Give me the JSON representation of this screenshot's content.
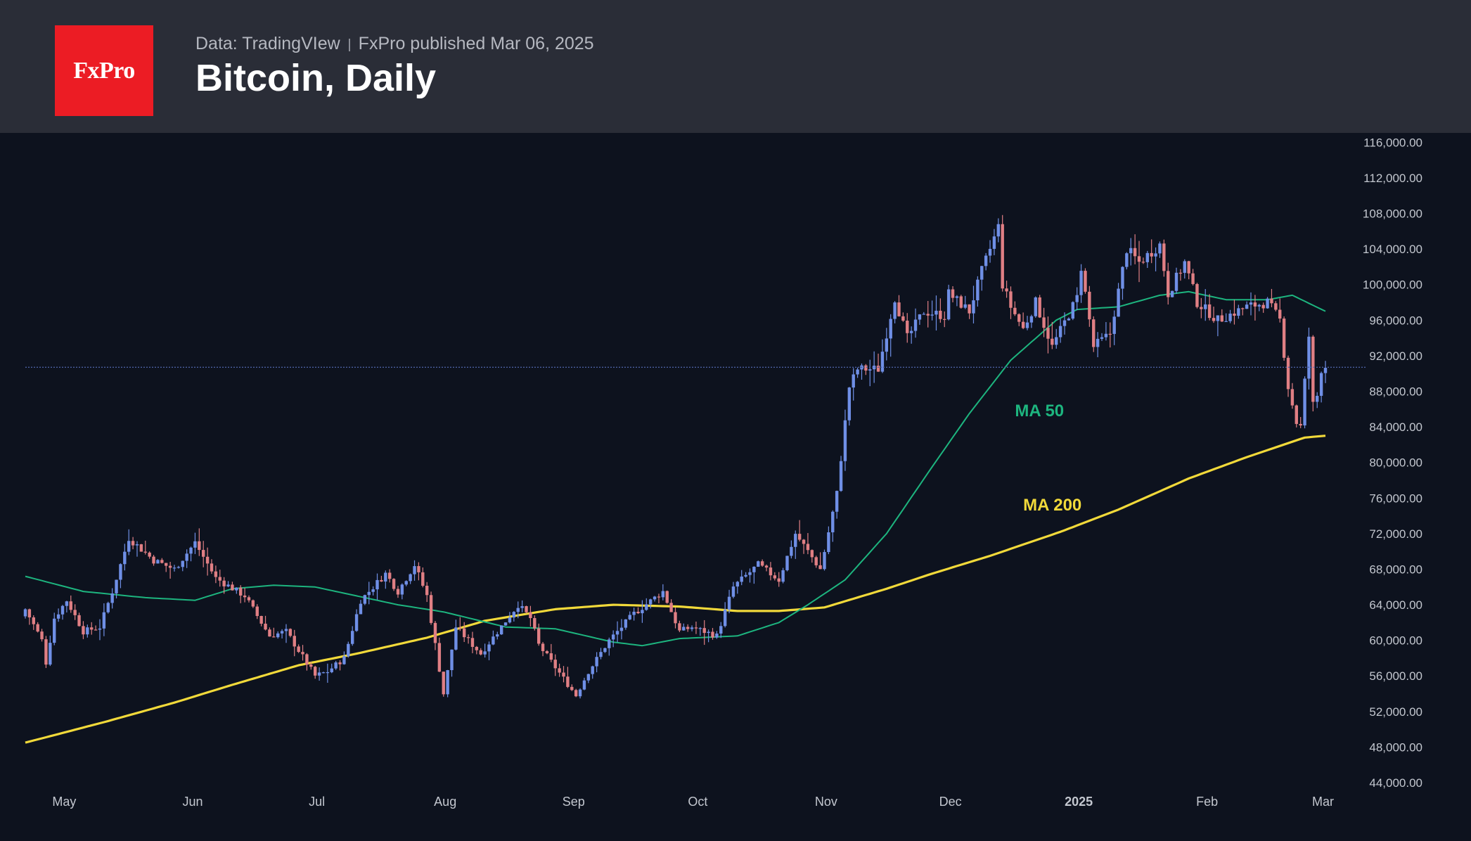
{
  "header": {
    "logo_text": "FxPro",
    "source": "Data: TradingVIew",
    "published": "FxPro published Mar 06, 2025",
    "title": "Bitcoin, Daily"
  },
  "colors": {
    "background": "#0d121e",
    "header": "#2a2d37",
    "logo": "#ec1c24",
    "candle_up": "#6f8fe6",
    "candle_down": "#e07f84",
    "ma50": "#1db57f",
    "ma200": "#f1d93a",
    "axis_text": "#c3c7cf",
    "current_price_line": "#4a5ea0"
  },
  "chart_data": {
    "type": "candlestick",
    "title": "Bitcoin, Daily",
    "x_tick_labels": [
      "May",
      "Jun",
      "Jul",
      "Aug",
      "Sep",
      "Oct",
      "Nov",
      "Dec",
      "2025",
      "Feb",
      "Mar"
    ],
    "x_tick_dates": [
      "2024-05-01",
      "2024-06-01",
      "2024-07-01",
      "2024-08-01",
      "2024-09-01",
      "2024-10-01",
      "2024-11-01",
      "2024-12-01",
      "2025-01-01",
      "2025-02-01",
      "2025-03-01"
    ],
    "y_tick_labels": [
      "116,000.00",
      "112,000.00",
      "108,000.00",
      "104,000.00",
      "100,000.00",
      "96,000.00",
      "92,000.00",
      "88,000.00",
      "84,000.00",
      "80,000.00",
      "76,000.00",
      "72,000.00",
      "68,000.00",
      "64,000.00",
      "60,000.00",
      "56,000.00",
      "52,000.00",
      "48,000.00",
      "44,000.00"
    ],
    "ylim": [
      42500,
      116500
    ],
    "x_range": [
      "2024-04-26",
      "2025-03-06"
    ],
    "current_price": 90700,
    "price_anchors": [
      [
        "2024-04-26",
        63500
      ],
      [
        "2024-04-30",
        60000
      ],
      [
        "2024-05-01",
        57500
      ],
      [
        "2024-05-03",
        62500
      ],
      [
        "2024-05-06",
        64500
      ],
      [
        "2024-05-10",
        61000
      ],
      [
        "2024-05-14",
        61500
      ],
      [
        "2024-05-17",
        65500
      ],
      [
        "2024-05-20",
        70000
      ],
      [
        "2024-05-21",
        71500
      ],
      [
        "2024-05-27",
        69000
      ],
      [
        "2024-06-01",
        68000
      ],
      [
        "2024-06-06",
        71000
      ],
      [
        "2024-06-11",
        67000
      ],
      [
        "2024-06-18",
        65000
      ],
      [
        "2024-06-24",
        60500
      ],
      [
        "2024-06-28",
        61000
      ],
      [
        "2024-07-05",
        56000
      ],
      [
        "2024-07-08",
        56500
      ],
      [
        "2024-07-12",
        58000
      ],
      [
        "2024-07-16",
        64500
      ],
      [
        "2024-07-22",
        67500
      ],
      [
        "2024-07-25",
        65500
      ],
      [
        "2024-07-29",
        68500
      ],
      [
        "2024-08-01",
        65000
      ],
      [
        "2024-08-05",
        54000
      ],
      [
        "2024-08-08",
        61500
      ],
      [
        "2024-08-14",
        58500
      ],
      [
        "2024-08-23",
        64000
      ],
      [
        "2024-08-26",
        62500
      ],
      [
        "2024-08-28",
        59500
      ],
      [
        "2024-09-06",
        53800
      ],
      [
        "2024-09-09",
        56500
      ],
      [
        "2024-09-14",
        60000
      ],
      [
        "2024-09-20",
        63000
      ],
      [
        "2024-09-27",
        65500
      ],
      [
        "2024-10-01",
        61000
      ],
      [
        "2024-10-04",
        61500
      ],
      [
        "2024-10-10",
        60500
      ],
      [
        "2024-10-14",
        66000
      ],
      [
        "2024-10-20",
        68500
      ],
      [
        "2024-10-25",
        66800
      ],
      [
        "2024-10-29",
        72000
      ],
      [
        "2024-11-04",
        68000
      ],
      [
        "2024-11-05",
        70000
      ],
      [
        "2024-11-08",
        76500
      ],
      [
        "2024-11-11",
        88500
      ],
      [
        "2024-11-13",
        90500
      ],
      [
        "2024-11-18",
        90500
      ],
      [
        "2024-11-22",
        98500
      ],
      [
        "2024-11-25",
        94000
      ],
      [
        "2024-11-29",
        97000
      ],
      [
        "2024-12-04",
        96500
      ],
      [
        "2024-12-05",
        99000
      ],
      [
        "2024-12-10",
        97000
      ],
      [
        "2024-12-13",
        101500
      ],
      [
        "2024-12-17",
        106500
      ],
      [
        "2024-12-18",
        100000
      ],
      [
        "2024-12-20",
        97500
      ],
      [
        "2024-12-23",
        95000
      ],
      [
        "2024-12-26",
        98000
      ],
      [
        "2024-12-30",
        93000
      ],
      [
        "2025-01-05",
        98500
      ],
      [
        "2025-01-06",
        102000
      ],
      [
        "2025-01-09",
        93000
      ],
      [
        "2025-01-13",
        94500
      ],
      [
        "2025-01-17",
        104000
      ],
      [
        "2025-01-20",
        102500
      ],
      [
        "2025-01-25",
        104500
      ],
      [
        "2025-01-27",
        99000
      ],
      [
        "2025-01-31",
        102500
      ],
      [
        "2025-02-03",
        98000
      ],
      [
        "2025-02-08",
        96000
      ],
      [
        "2025-02-15",
        97500
      ],
      [
        "2025-02-20",
        98000
      ],
      [
        "2025-02-23",
        96000
      ],
      [
        "2025-02-25",
        88500
      ],
      [
        "2025-02-27",
        84500
      ],
      [
        "2025-02-28",
        84000
      ],
      [
        "2025-03-02",
        94200
      ],
      [
        "2025-03-03",
        86500
      ],
      [
        "2025-03-04",
        87500
      ],
      [
        "2025-03-05",
        90500
      ],
      [
        "2025-03-06",
        90800
      ]
    ],
    "ma50": [
      [
        "2024-04-26",
        67200
      ],
      [
        "2024-05-10",
        65500
      ],
      [
        "2024-05-25",
        64800
      ],
      [
        "2024-06-06",
        64500
      ],
      [
        "2024-06-15",
        65800
      ],
      [
        "2024-06-25",
        66200
      ],
      [
        "2024-07-05",
        66000
      ],
      [
        "2024-07-15",
        65000
      ],
      [
        "2024-07-25",
        64000
      ],
      [
        "2024-08-05",
        63200
      ],
      [
        "2024-08-20",
        61500
      ],
      [
        "2024-09-01",
        61300
      ],
      [
        "2024-09-15",
        59800
      ],
      [
        "2024-09-22",
        59400
      ],
      [
        "2024-10-01",
        60200
      ],
      [
        "2024-10-15",
        60500
      ],
      [
        "2024-10-25",
        62000
      ],
      [
        "2024-11-01",
        64000
      ],
      [
        "2024-11-10",
        66800
      ],
      [
        "2024-11-20",
        72000
      ],
      [
        "2024-12-01",
        79500
      ],
      [
        "2024-12-10",
        85500
      ],
      [
        "2024-12-20",
        91500
      ],
      [
        "2024-12-31",
        96000
      ],
      [
        "2025-01-05",
        97200
      ],
      [
        "2025-01-15",
        97500
      ],
      [
        "2025-01-25",
        98800
      ],
      [
        "2025-02-01",
        99200
      ],
      [
        "2025-02-10",
        98300
      ],
      [
        "2025-02-20",
        98300
      ],
      [
        "2025-02-26",
        98800
      ],
      [
        "2025-03-06",
        97000
      ]
    ],
    "ma200": [
      [
        "2024-04-26",
        48500
      ],
      [
        "2024-05-15",
        50800
      ],
      [
        "2024-06-01",
        53000
      ],
      [
        "2024-06-15",
        55000
      ],
      [
        "2024-07-01",
        57200
      ],
      [
        "2024-07-15",
        58500
      ],
      [
        "2024-08-01",
        60300
      ],
      [
        "2024-08-15",
        62200
      ],
      [
        "2024-09-01",
        63500
      ],
      [
        "2024-09-15",
        64000
      ],
      [
        "2024-10-01",
        63800
      ],
      [
        "2024-10-15",
        63300
      ],
      [
        "2024-10-25",
        63300
      ],
      [
        "2024-11-05",
        63700
      ],
      [
        "2024-11-20",
        65800
      ],
      [
        "2024-12-01",
        67500
      ],
      [
        "2024-12-15",
        69500
      ],
      [
        "2025-01-01",
        72200
      ],
      [
        "2025-01-15",
        74700
      ],
      [
        "2025-02-01",
        78200
      ],
      [
        "2025-02-15",
        80600
      ],
      [
        "2025-03-01",
        82800
      ],
      [
        "2025-03-06",
        83000
      ]
    ],
    "annotations": [
      {
        "text": "MA 50",
        "date": "2024-12-21",
        "price": 85200
      },
      {
        "text": "MA 200",
        "date": "2024-12-23",
        "price": 74600
      }
    ]
  }
}
